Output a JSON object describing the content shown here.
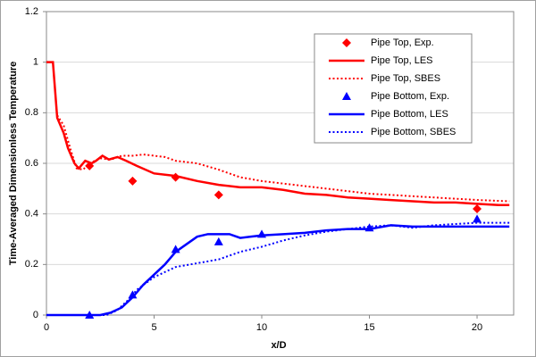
{
  "chart_data": {
    "type": "line",
    "xlabel": "x/D",
    "ylabel": "Time-Averaged Dimensionless Temperature",
    "xlim": [
      0,
      21.7
    ],
    "xticks": [
      0,
      5,
      10,
      15,
      20
    ],
    "ylim": [
      0,
      1.2
    ],
    "yticks": [
      0,
      0.2,
      0.4,
      0.6,
      0.8,
      1,
      1.2
    ],
    "grid": true,
    "legend": "upper right",
    "series": [
      {
        "name": "Pipe Top, Exp.",
        "color": "#ff0000",
        "marker": "diamond",
        "line": "none",
        "x": [
          2,
          4,
          6,
          8,
          20
        ],
        "values": [
          0.59,
          0.53,
          0.545,
          0.475,
          0.42
        ]
      },
      {
        "name": "Pipe Top, LES",
        "color": "#ff0000",
        "marker": "none",
        "line": "solid",
        "x": [
          0,
          0.3,
          0.5,
          0.8,
          1.0,
          1.3,
          1.5,
          1.8,
          2.1,
          2.3,
          2.6,
          2.9,
          3.3,
          3.7,
          4.2,
          5,
          6,
          7,
          8,
          9,
          10,
          11,
          12,
          13,
          14,
          15,
          16,
          17,
          18,
          19,
          20,
          21,
          21.5
        ],
        "values": [
          1,
          1,
          0.78,
          0.72,
          0.66,
          0.6,
          0.58,
          0.61,
          0.6,
          0.61,
          0.63,
          0.615,
          0.625,
          0.61,
          0.59,
          0.56,
          0.55,
          0.53,
          0.515,
          0.505,
          0.505,
          0.495,
          0.48,
          0.475,
          0.465,
          0.46,
          0.455,
          0.45,
          0.445,
          0.445,
          0.44,
          0.435,
          0.435
        ]
      },
      {
        "name": "Pipe Top, SBES",
        "color": "#ff0000",
        "marker": "none",
        "line": "dotted",
        "x": [
          0.5,
          0.8,
          1.1,
          1.4,
          1.7,
          2.0,
          2.5,
          3,
          3.5,
          4,
          4.5,
          5,
          5.5,
          6,
          7,
          8,
          9,
          10,
          11,
          12,
          13,
          14,
          15,
          16,
          17,
          18,
          19,
          20,
          21.5
        ],
        "values": [
          0.79,
          0.75,
          0.66,
          0.58,
          0.575,
          0.6,
          0.62,
          0.615,
          0.63,
          0.63,
          0.635,
          0.63,
          0.625,
          0.61,
          0.6,
          0.575,
          0.545,
          0.53,
          0.52,
          0.51,
          0.5,
          0.49,
          0.48,
          0.475,
          0.47,
          0.465,
          0.46,
          0.455,
          0.45
        ]
      },
      {
        "name": "Pipe Bottom, Exp.",
        "color": "#0000ff",
        "marker": "triangle",
        "line": "none",
        "x": [
          2,
          4,
          6,
          8,
          10,
          15,
          20
        ],
        "values": [
          0.0,
          0.08,
          0.26,
          0.29,
          0.32,
          0.345,
          0.38
        ]
      },
      {
        "name": "Pipe Bottom, LES",
        "color": "#0000ff",
        "marker": "none",
        "line": "solid",
        "x": [
          0,
          2.5,
          3,
          3.5,
          4,
          4.5,
          5,
          5.5,
          6,
          6.5,
          7,
          7.5,
          8,
          8.5,
          9,
          9.5,
          10,
          11,
          12,
          13,
          14,
          15,
          16,
          17,
          18,
          19,
          20,
          21.5
        ],
        "values": [
          0,
          0,
          0.01,
          0.03,
          0.07,
          0.12,
          0.16,
          0.2,
          0.25,
          0.28,
          0.31,
          0.32,
          0.32,
          0.32,
          0.305,
          0.31,
          0.315,
          0.32,
          0.325,
          0.335,
          0.34,
          0.34,
          0.355,
          0.35,
          0.35,
          0.35,
          0.35,
          0.35
        ]
      },
      {
        "name": "Pipe Bottom, SBES",
        "color": "#0000ff",
        "marker": "none",
        "line": "dotted",
        "x": [
          0,
          2.8,
          3.3,
          3.8,
          4.2,
          5,
          6,
          7,
          8,
          9,
          10,
          11,
          12,
          13,
          14,
          15,
          16,
          17,
          18,
          19,
          20,
          21.5
        ],
        "values": [
          0,
          0,
          0.02,
          0.06,
          0.1,
          0.15,
          0.19,
          0.205,
          0.22,
          0.25,
          0.27,
          0.295,
          0.315,
          0.33,
          0.34,
          0.35,
          0.355,
          0.345,
          0.355,
          0.36,
          0.365,
          0.365
        ]
      }
    ]
  }
}
